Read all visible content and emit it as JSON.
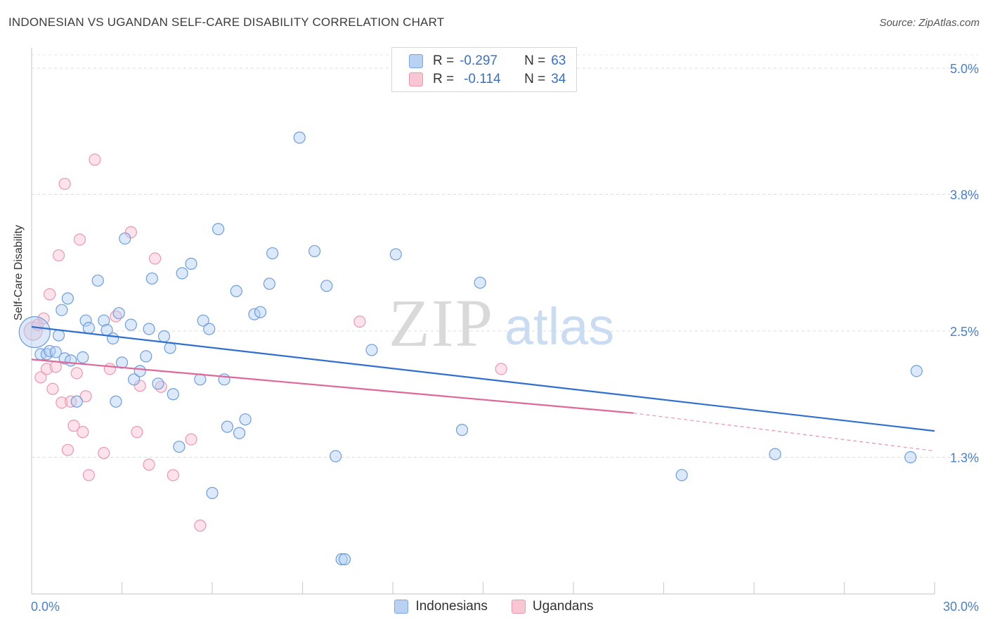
{
  "title": "INDONESIAN VS UGANDAN SELF-CARE DISABILITY CORRELATION CHART",
  "source": "Source: ZipAtlas.com",
  "watermark": {
    "zip": "ZIP",
    "atlas": "atlas"
  },
  "legend": {
    "r_label": "R =",
    "n_label": "N =",
    "rows": [
      {
        "r": "-0.297",
        "n": "63",
        "color": "#7aa6e3"
      },
      {
        "r": "-0.114",
        "n": "34",
        "color": "#ee97b0"
      }
    ]
  },
  "bottom_legend": [
    "Indonesians",
    "Ugandans"
  ],
  "chart_data": {
    "type": "scatter",
    "xlabel": "",
    "ylabel": "Self-Care Disability",
    "xlim": [
      0,
      30
    ],
    "ylim": [
      0,
      5.0
    ],
    "x_tick_labels": [
      "0.0%",
      "30.0%"
    ],
    "y_ticks": [
      1.3,
      2.5,
      3.8,
      5.0
    ],
    "y_tick_labels": [
      "1.3%",
      "2.5%",
      "3.8%",
      "5.0%"
    ],
    "grid": true,
    "legend_position": "top-center",
    "colors": {
      "indonesians": "#5b95dd",
      "ugandans": "#ec8bab",
      "trend_blue": "#2f6fd0",
      "trend_pink": "#e0679a"
    },
    "series": [
      {
        "name": "Indonesians",
        "points": [
          [
            0.1,
            2.49
          ],
          [
            0.3,
            2.28
          ],
          [
            0.5,
            2.28
          ],
          [
            0.6,
            2.31
          ],
          [
            0.8,
            2.3
          ],
          [
            0.9,
            2.46
          ],
          [
            1.0,
            2.7
          ],
          [
            1.1,
            2.24
          ],
          [
            1.2,
            2.81
          ],
          [
            1.3,
            2.22
          ],
          [
            1.5,
            1.83
          ],
          [
            1.8,
            2.6
          ],
          [
            1.9,
            2.53
          ],
          [
            2.2,
            2.98
          ],
          [
            2.4,
            2.6
          ],
          [
            2.5,
            2.51
          ],
          [
            2.7,
            2.43
          ],
          [
            2.8,
            1.83
          ],
          [
            2.9,
            2.67
          ],
          [
            3.1,
            3.38
          ],
          [
            3.3,
            2.56
          ],
          [
            3.4,
            2.04
          ],
          [
            3.6,
            2.12
          ],
          [
            3.8,
            2.26
          ],
          [
            3.9,
            2.52
          ],
          [
            4.0,
            3.0
          ],
          [
            4.2,
            2.0
          ],
          [
            4.4,
            2.45
          ],
          [
            4.6,
            2.34
          ],
          [
            4.7,
            1.9
          ],
          [
            4.9,
            1.4
          ],
          [
            5.0,
            3.05
          ],
          [
            5.3,
            3.14
          ],
          [
            5.6,
            2.04
          ],
          [
            5.7,
            2.6
          ],
          [
            5.9,
            2.52
          ],
          [
            6.2,
            3.47
          ],
          [
            6.4,
            2.04
          ],
          [
            6.5,
            1.59
          ],
          [
            6.8,
            2.88
          ],
          [
            6.9,
            1.53
          ],
          [
            7.1,
            1.66
          ],
          [
            7.4,
            2.66
          ],
          [
            7.6,
            2.68
          ],
          [
            7.9,
            2.95
          ],
          [
            8.0,
            3.24
          ],
          [
            8.9,
            4.34
          ],
          [
            9.4,
            3.26
          ],
          [
            9.8,
            2.93
          ],
          [
            10.1,
            1.31
          ],
          [
            10.3,
            0.33
          ],
          [
            11.3,
            2.32
          ],
          [
            12.1,
            3.23
          ],
          [
            14.3,
            1.56
          ],
          [
            14.9,
            2.96
          ],
          [
            21.6,
            1.13
          ],
          [
            24.7,
            1.33
          ],
          [
            29.2,
            1.3
          ],
          [
            29.4,
            2.12
          ],
          [
            1.7,
            2.25
          ],
          [
            3.0,
            2.2
          ],
          [
            6.0,
            0.96
          ],
          [
            10.4,
            0.33
          ]
        ]
      },
      {
        "name": "Ugandans",
        "points": [
          [
            0.05,
            2.5
          ],
          [
            0.2,
            2.56
          ],
          [
            0.3,
            2.06
          ],
          [
            0.5,
            2.14
          ],
          [
            0.6,
            2.85
          ],
          [
            0.7,
            1.95
          ],
          [
            0.8,
            2.16
          ],
          [
            0.9,
            3.22
          ],
          [
            1.0,
            1.82
          ],
          [
            1.1,
            3.9
          ],
          [
            1.2,
            1.37
          ],
          [
            1.3,
            1.83
          ],
          [
            1.4,
            1.6
          ],
          [
            1.5,
            2.1
          ],
          [
            1.6,
            3.37
          ],
          [
            1.7,
            1.54
          ],
          [
            1.9,
            1.13
          ],
          [
            2.1,
            4.13
          ],
          [
            2.4,
            1.34
          ],
          [
            2.6,
            2.14
          ],
          [
            2.8,
            2.64
          ],
          [
            3.3,
            3.44
          ],
          [
            3.5,
            1.54
          ],
          [
            3.6,
            1.98
          ],
          [
            3.9,
            1.23
          ],
          [
            4.1,
            3.19
          ],
          [
            4.3,
            1.97
          ],
          [
            4.7,
            1.13
          ],
          [
            5.3,
            1.47
          ],
          [
            5.6,
            0.65
          ],
          [
            10.9,
            2.59
          ],
          [
            15.6,
            2.14
          ],
          [
            0.4,
            2.62
          ],
          [
            1.8,
            1.88
          ]
        ]
      }
    ],
    "trend_lines": [
      {
        "series": "Indonesians",
        "x": [
          0,
          30
        ],
        "y": [
          2.54,
          1.55
        ]
      },
      {
        "series": "Ugandans",
        "x": [
          0,
          20
        ],
        "y": [
          2.23,
          1.72
        ],
        "dashed_extension": {
          "x": [
            20,
            30
          ],
          "y": [
            1.72,
            1.36
          ]
        }
      }
    ]
  }
}
